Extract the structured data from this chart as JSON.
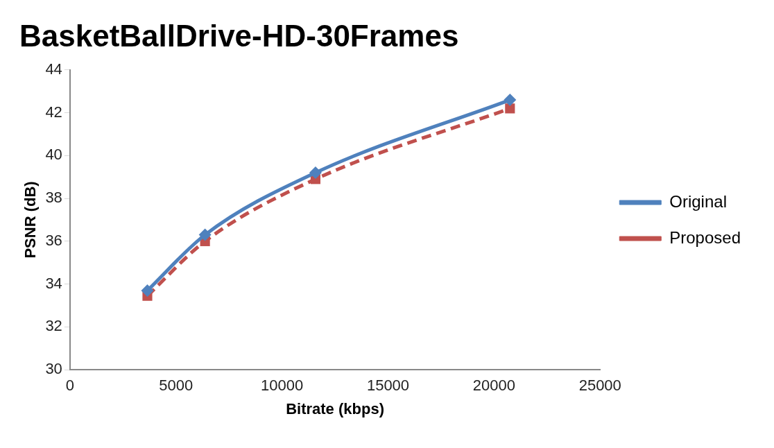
{
  "chart_data": {
    "type": "line",
    "title": "BasketBallDrive-HD-30Frames",
    "xlabel": "Bitrate (kbps)",
    "ylabel": "PSNR (dB)",
    "x": [
      3650,
      6370,
      11580,
      20750
    ],
    "series": [
      {
        "name": "Original",
        "color": "#4f81bd",
        "values": [
          33.7,
          36.3,
          39.2,
          42.6
        ],
        "marker": "diamond",
        "line_style": "solid"
      },
      {
        "name": "Proposed",
        "color": "#c0504d",
        "values": [
          33.45,
          36.0,
          38.9,
          42.2
        ],
        "marker": "square",
        "line_style": "dashed"
      }
    ],
    "xlim": [
      0,
      25000
    ],
    "xticks": [
      0,
      5000,
      10000,
      15000,
      20000,
      25000
    ],
    "ylim": [
      30,
      44
    ],
    "yticks": [
      30,
      32,
      34,
      36,
      38,
      40,
      42,
      44
    ],
    "grid": false,
    "legend": "right"
  }
}
